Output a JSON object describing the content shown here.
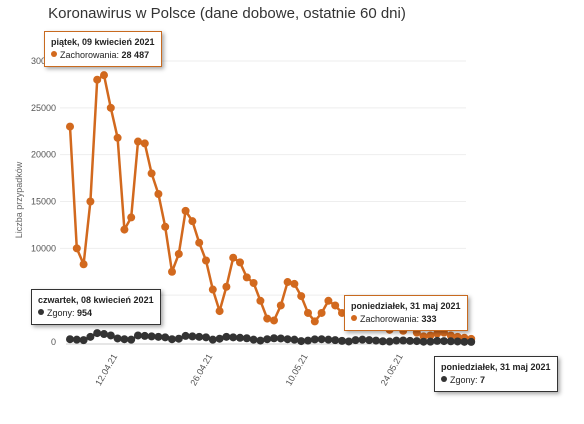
{
  "chart_data": {
    "type": "line",
    "title": "Koronawirus w Polsce (dane dobowe, ostatnie 60 dni)",
    "ylabel": "Liczba przypadków",
    "ylim": [
      0,
      30000
    ],
    "yticks": [
      "0",
      "5000",
      "10000",
      "15000",
      "20000",
      "25000",
      "30000"
    ],
    "ytick_values": [
      0,
      5000,
      10000,
      15000,
      20000,
      25000,
      30000
    ],
    "xticks": [
      "12.04.21",
      "26.04.21",
      "10.05.21",
      "24.05.21"
    ],
    "xtick_index": [
      7,
      21,
      35,
      49
    ],
    "series": [
      {
        "name": "Zachorowania",
        "color": "#d2691e",
        "values": [
          23000,
          10000,
          8300,
          15000,
          28000,
          28487,
          25000,
          21800,
          12000,
          13300,
          21400,
          21200,
          18000,
          15800,
          12300,
          7500,
          9400,
          14000,
          12900,
          10600,
          8700,
          5600,
          3300,
          5900,
          9000,
          8500,
          6900,
          6300,
          4400,
          2500,
          2300,
          3900,
          6400,
          6200,
          4900,
          3100,
          2200,
          3100,
          4400,
          3900,
          3100,
          2600,
          2200,
          3600,
          3200,
          2400,
          1800,
          1300,
          1600,
          1200,
          1800,
          1000,
          600,
          700,
          900,
          1000,
          700,
          550,
          450,
          333
        ]
      },
      {
        "name": "Zgony",
        "color": "#333333",
        "values": [
          300,
          250,
          200,
          550,
          954,
          850,
          700,
          380,
          300,
          250,
          700,
          650,
          600,
          550,
          500,
          300,
          350,
          650,
          600,
          550,
          500,
          250,
          350,
          550,
          500,
          450,
          400,
          250,
          150,
          300,
          400,
          380,
          300,
          250,
          100,
          150,
          280,
          300,
          250,
          200,
          120,
          60,
          200,
          250,
          200,
          150,
          80,
          50,
          150,
          160,
          120,
          100,
          30,
          40,
          120,
          100,
          80,
          60,
          20,
          7
        ]
      }
    ]
  },
  "tooltips": [
    {
      "date": "piątek, 09 kwiecień 2021",
      "series": "Zachorowania",
      "value": "28 487"
    },
    {
      "date": "czwartek, 08 kwiecień 2021",
      "series": "Zgony",
      "value": "954"
    },
    {
      "date": "poniedziałek, 31 maj 2021",
      "series": "Zachorowania",
      "value": "333"
    },
    {
      "date": "poniedziałek, 31 maj 2021",
      "series": "Zgony",
      "value": "7"
    }
  ]
}
